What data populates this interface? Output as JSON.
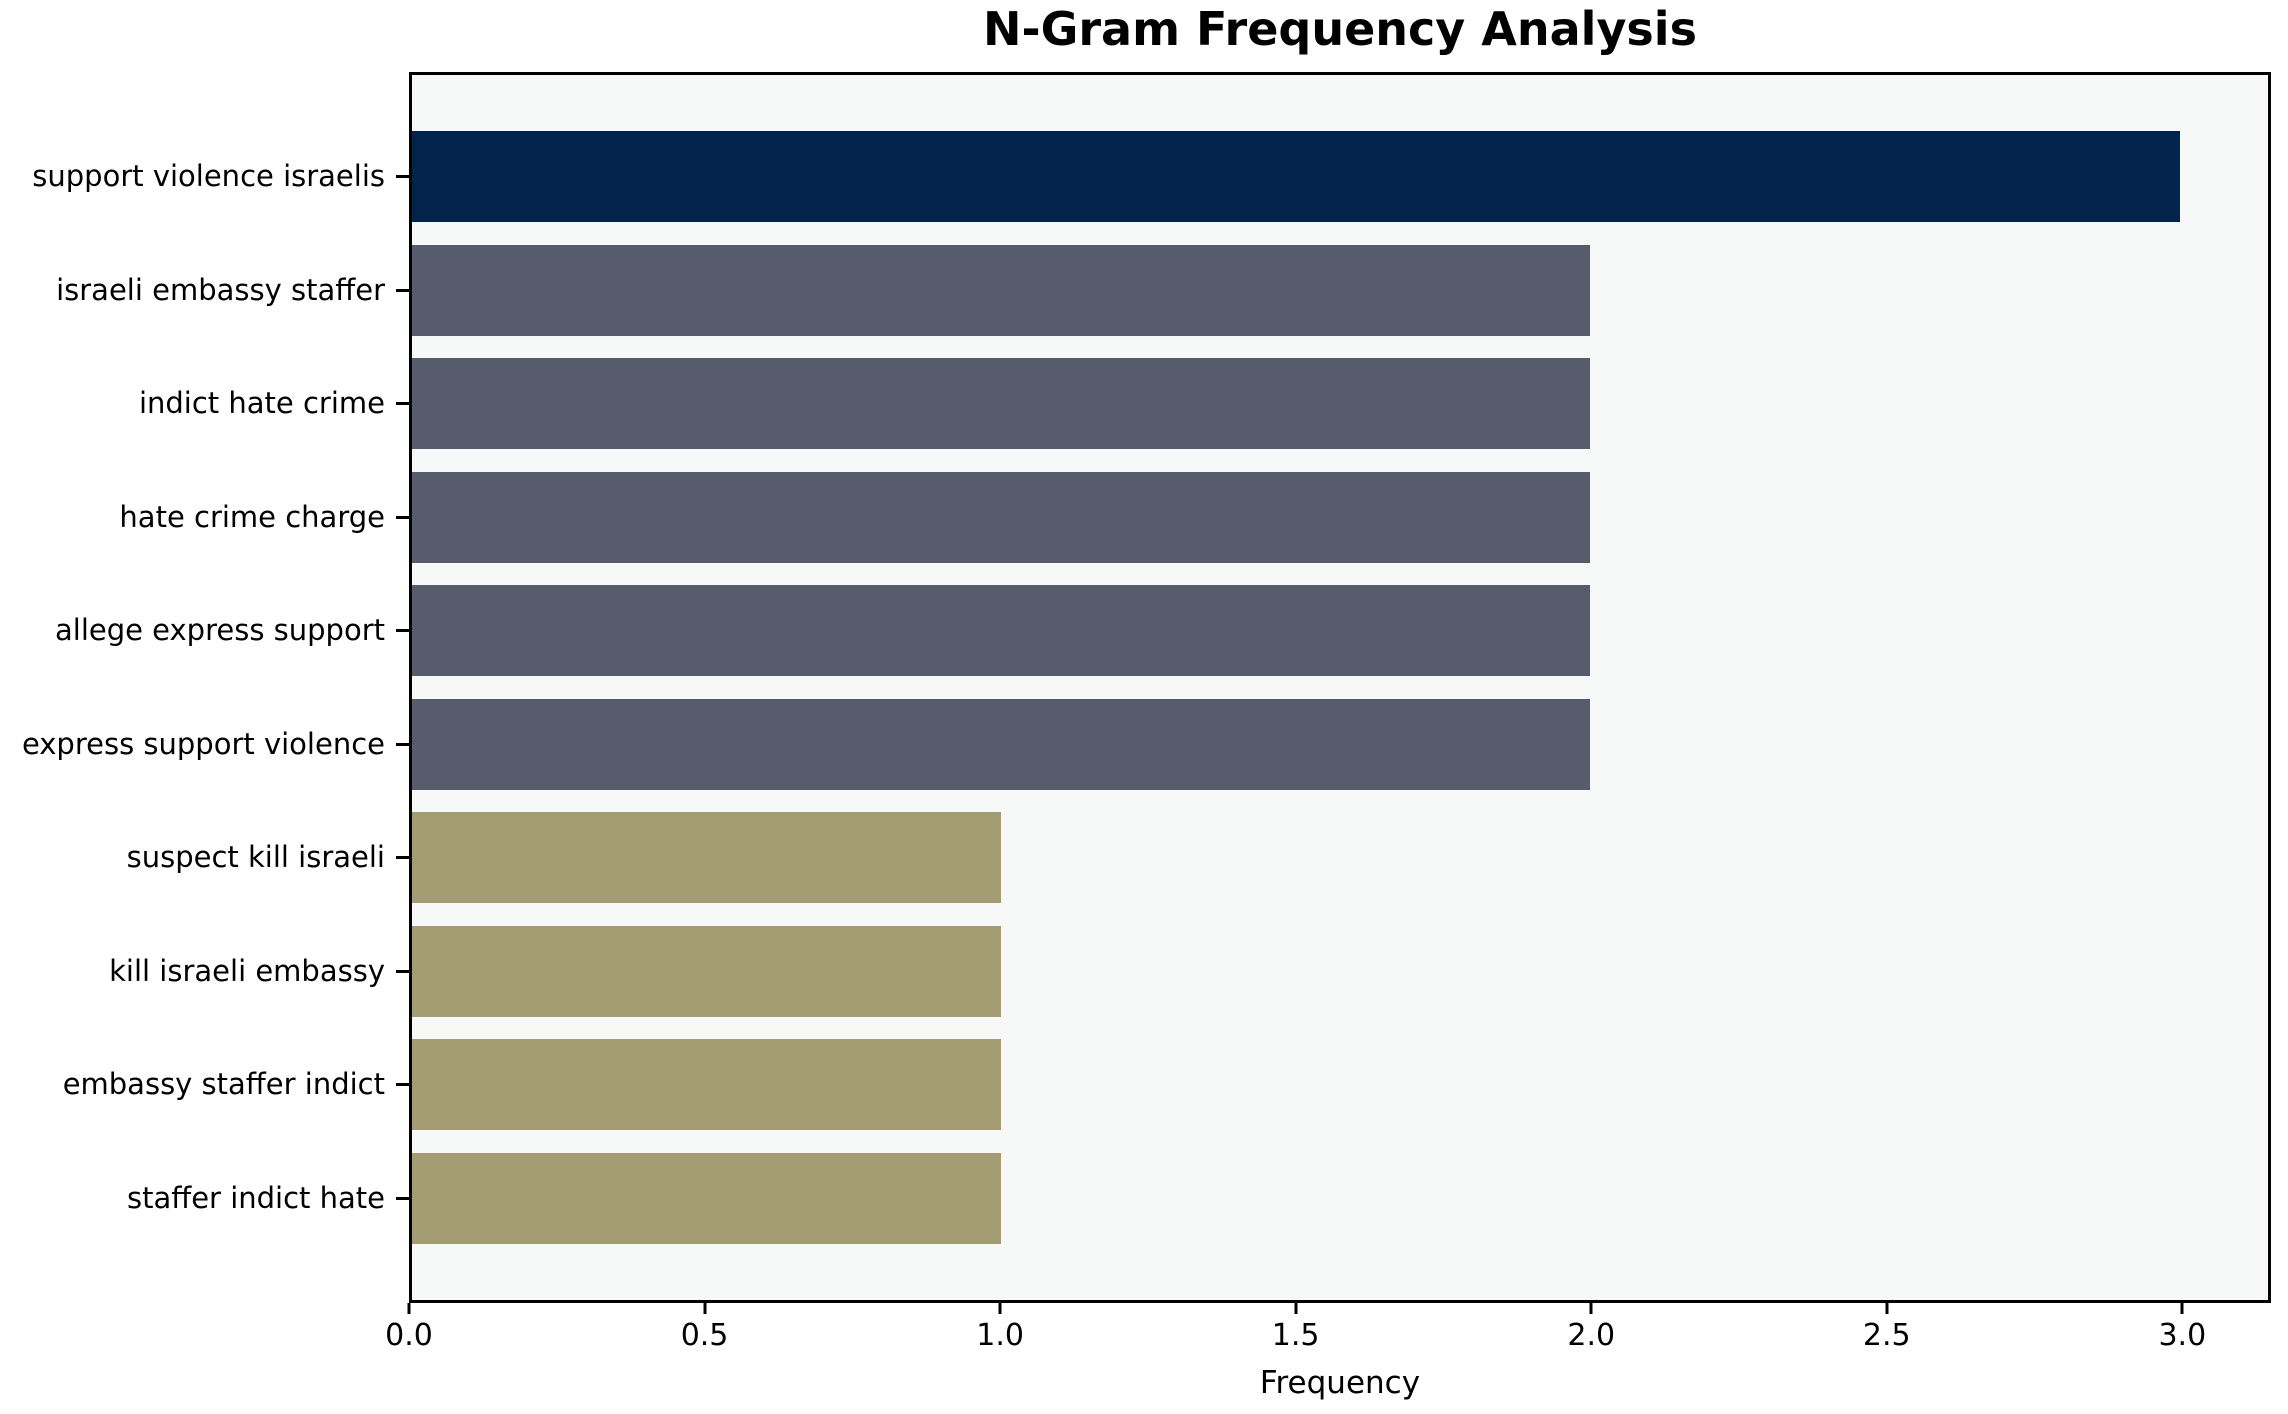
{
  "chart_data": {
    "type": "bar",
    "orientation": "horizontal",
    "title": "N-Gram Frequency Analysis",
    "xlabel": "Frequency",
    "ylabel": "",
    "categories": [
      "support violence israelis",
      "israeli embassy staffer",
      "indict hate crime",
      "hate crime charge",
      "allege express support",
      "express support violence",
      "suspect kill israeli",
      "kill israeli embassy",
      "embassy staffer indict",
      "staffer indict hate"
    ],
    "values": [
      3,
      2,
      2,
      2,
      2,
      2,
      1,
      1,
      1,
      1
    ],
    "bar_colors": [
      "#02234c",
      "#565c6c",
      "#565c6c",
      "#565c6c",
      "#565c6c",
      "#565c6c",
      "#a49c72",
      "#a49c72",
      "#a49c72",
      "#a49c72"
    ],
    "xticks": [
      0.0,
      0.5,
      1.0,
      1.5,
      2.0,
      2.5,
      3.0
    ],
    "xtick_labels": [
      "0.0",
      "0.5",
      "1.0",
      "1.5",
      "2.0",
      "2.5",
      "3.0"
    ],
    "xlim": [
      0,
      3.15
    ],
    "grid": false,
    "legend": null,
    "plot_background": "#f7f8f8",
    "figure_background": "#ffffff",
    "axis_color": "#000000"
  }
}
